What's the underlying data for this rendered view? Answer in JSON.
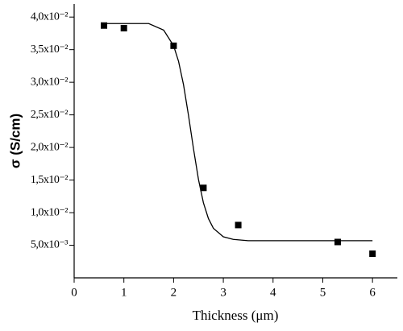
{
  "chart_data": {
    "type": "scatter",
    "x_label": "Thickness (μm)",
    "y_label": "σ (S/cm)",
    "xlim": [
      0,
      6.5
    ],
    "ylim": [
      0,
      0.042
    ],
    "xticks": [
      0,
      1,
      2,
      3,
      4,
      5,
      6
    ],
    "yticks": [
      {
        "value": 0.005,
        "label": "5,0x10⁻³"
      },
      {
        "value": 0.01,
        "label": "1,0x10⁻²"
      },
      {
        "value": 0.015,
        "label": "1,5x10⁻²"
      },
      {
        "value": 0.02,
        "label": "2,0x10⁻²"
      },
      {
        "value": 0.025,
        "label": "2,5x10⁻²"
      },
      {
        "value": 0.03,
        "label": "3,0x10⁻²"
      },
      {
        "value": 0.035,
        "label": "3,5x10⁻²"
      },
      {
        "value": 0.04,
        "label": "4,0x10⁻²"
      }
    ],
    "series": [
      {
        "kind": "marker",
        "color": "#000000",
        "x": [
          0.6,
          1.0,
          2.0,
          2.6,
          3.3,
          5.3,
          6.0
        ],
        "values": [
          0.0387,
          0.0383,
          0.0356,
          0.0138,
          0.0081,
          0.0055,
          0.0037
        ]
      },
      {
        "kind": "line",
        "color": "#000000",
        "x": [
          0.6,
          1.0,
          1.5,
          1.8,
          2.0,
          2.1,
          2.2,
          2.3,
          2.4,
          2.5,
          2.6,
          2.7,
          2.8,
          3.0,
          3.2,
          3.5,
          4.0,
          5.0,
          6.0
        ],
        "values": [
          0.039,
          0.039,
          0.039,
          0.038,
          0.0356,
          0.0332,
          0.0296,
          0.0249,
          0.0198,
          0.0151,
          0.0115,
          0.0091,
          0.0076,
          0.0063,
          0.0059,
          0.0057,
          0.0057,
          0.0057,
          0.0057
        ]
      }
    ]
  }
}
